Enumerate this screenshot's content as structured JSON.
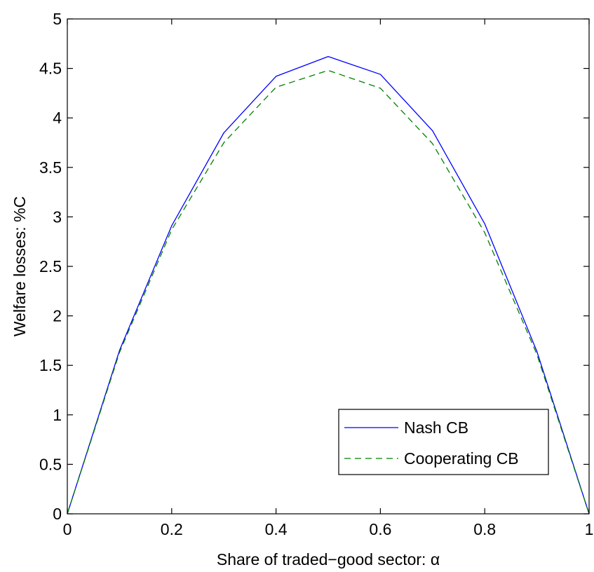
{
  "chart_data": {
    "type": "line",
    "title": "",
    "xlabel": "Share of traded−good sector: α",
    "ylabel": "Welfare losses: %C",
    "xlim": [
      0,
      1
    ],
    "ylim": [
      0,
      5
    ],
    "xticks": [
      0,
      0.2,
      0.4,
      0.6,
      0.8,
      1
    ],
    "xtick_labels": [
      "0",
      "0.2",
      "0.4",
      "0.6",
      "0.8",
      "1"
    ],
    "yticks": [
      0,
      0.5,
      1,
      1.5,
      2,
      2.5,
      3,
      3.5,
      4,
      4.5,
      5
    ],
    "ytick_labels": [
      "0",
      "0.5",
      "1",
      "1.5",
      "2",
      "2.5",
      "3",
      "3.5",
      "4",
      "4.5",
      "5"
    ],
    "grid": false,
    "legend_position": "bottom-right",
    "x": [
      0,
      0.1,
      0.2,
      0.3,
      0.4,
      0.5,
      0.6,
      0.7,
      0.8,
      0.9,
      1
    ],
    "series": [
      {
        "name": "Nash CB",
        "values": [
          0,
          1.65,
          2.91,
          3.85,
          4.42,
          4.62,
          4.44,
          3.87,
          2.93,
          1.64,
          0
        ],
        "color": "#0000ff",
        "style": "solid"
      },
      {
        "name": "Cooperating CB",
        "values": [
          0,
          1.63,
          2.87,
          3.75,
          4.31,
          4.48,
          4.3,
          3.74,
          2.84,
          1.61,
          0
        ],
        "color": "#008000",
        "style": "dashed"
      }
    ]
  }
}
